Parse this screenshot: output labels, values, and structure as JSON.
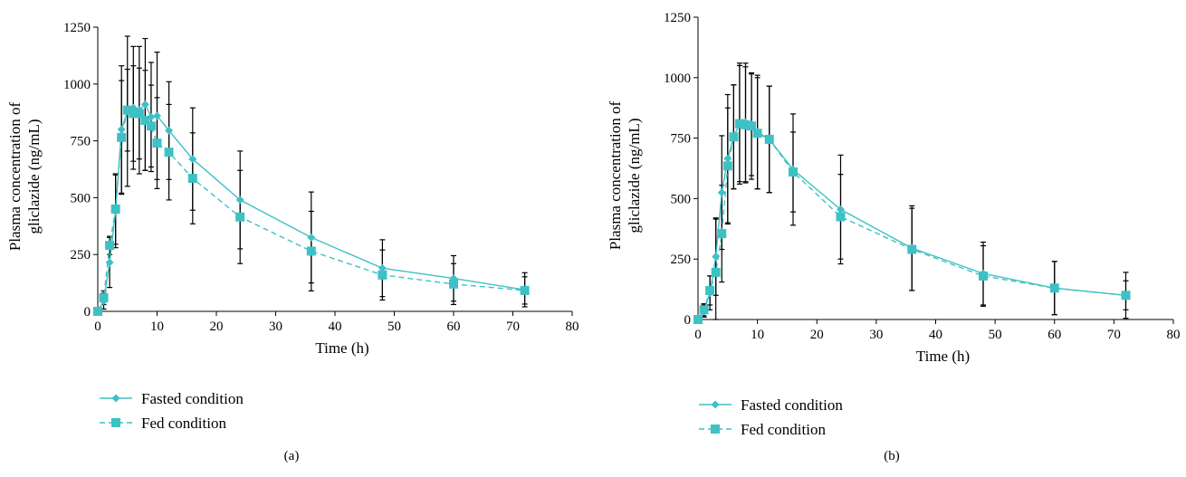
{
  "colors": {
    "series": "#3ec1c4",
    "axis": "#000000",
    "errorbar": "#000000"
  },
  "chart_data": [
    {
      "type": "line",
      "panel_label": "(a)",
      "xlabel": "Time (h)",
      "ylabel": [
        "Plasma concentration of",
        "gliclazide (ng/mL)"
      ],
      "xlim": [
        0,
        80
      ],
      "ylim": [
        0,
        1250
      ],
      "xticks": [
        0,
        10,
        20,
        30,
        40,
        50,
        60,
        70,
        80
      ],
      "yticks": [
        0,
        250,
        500,
        750,
        1000,
        1250
      ],
      "grid": false,
      "legend_position": "bottom-left",
      "series": [
        {
          "name": "Fasted condition",
          "marker": "diamond",
          "dash": "solid",
          "x": [
            0,
            1,
            2,
            3,
            4,
            5,
            6,
            7,
            8,
            9,
            10,
            12,
            16,
            24,
            36,
            48,
            60,
            72
          ],
          "y": [
            0,
            45,
            215,
            440,
            800,
            880,
            895,
            885,
            910,
            855,
            860,
            795,
            670,
            490,
            325,
            190,
            145,
            95
          ],
          "err": [
            0,
            35,
            110,
            160,
            280,
            330,
            270,
            280,
            290,
            240,
            280,
            215,
            225,
            215,
            200,
            125,
            100,
            75
          ]
        },
        {
          "name": "Fed condition",
          "marker": "square",
          "dash": "dashed",
          "x": [
            0,
            1,
            2,
            3,
            4,
            5,
            6,
            7,
            8,
            9,
            10,
            12,
            16,
            24,
            36,
            48,
            60,
            72
          ],
          "y": [
            0,
            60,
            290,
            450,
            765,
            885,
            870,
            870,
            840,
            815,
            740,
            700,
            585,
            415,
            265,
            160,
            120,
            92
          ],
          "err": [
            0,
            30,
            40,
            155,
            250,
            180,
            210,
            200,
            220,
            180,
            200,
            210,
            200,
            205,
            175,
            110,
            90,
            60
          ]
        }
      ]
    },
    {
      "type": "line",
      "panel_label": "(b)",
      "xlabel": "Time (h)",
      "ylabel": [
        "Plasma concentration of",
        "gliclazide (ng/mL)"
      ],
      "xlim": [
        0,
        80
      ],
      "ylim": [
        0,
        1250
      ],
      "xticks": [
        0,
        10,
        20,
        30,
        40,
        50,
        60,
        70,
        80
      ],
      "yticks": [
        0,
        250,
        500,
        750,
        1000,
        1250
      ],
      "grid": false,
      "legend_position": "bottom-left",
      "series": [
        {
          "name": "Fasted condition",
          "marker": "diamond",
          "dash": "solid",
          "x": [
            0,
            1,
            2,
            3,
            4,
            5,
            6,
            7,
            8,
            9,
            10,
            12,
            16,
            24,
            36,
            48,
            60,
            72
          ],
          "y": [
            0,
            35,
            110,
            260,
            525,
            665,
            755,
            810,
            815,
            805,
            775,
            745,
            620,
            455,
            295,
            190,
            130,
            100
          ],
          "err": [
            0,
            25,
            70,
            160,
            235,
            265,
            215,
            240,
            245,
            210,
            235,
            220,
            230,
            225,
            175,
            130,
            110,
            60
          ]
        },
        {
          "name": "Fed condition",
          "marker": "square",
          "dash": "dashed",
          "x": [
            0,
            1,
            2,
            3,
            4,
            5,
            6,
            7,
            8,
            9,
            10,
            12,
            16,
            24,
            36,
            48,
            60,
            72
          ],
          "y": [
            0,
            40,
            120,
            195,
            355,
            635,
            755,
            810,
            805,
            800,
            770,
            745,
            610,
            425,
            290,
            180,
            130,
            100
          ],
          "err": [
            0,
            25,
            60,
            220,
            200,
            240,
            215,
            250,
            240,
            220,
            230,
            220,
            165,
            175,
            170,
            125,
            110,
            95
          ]
        }
      ]
    }
  ]
}
